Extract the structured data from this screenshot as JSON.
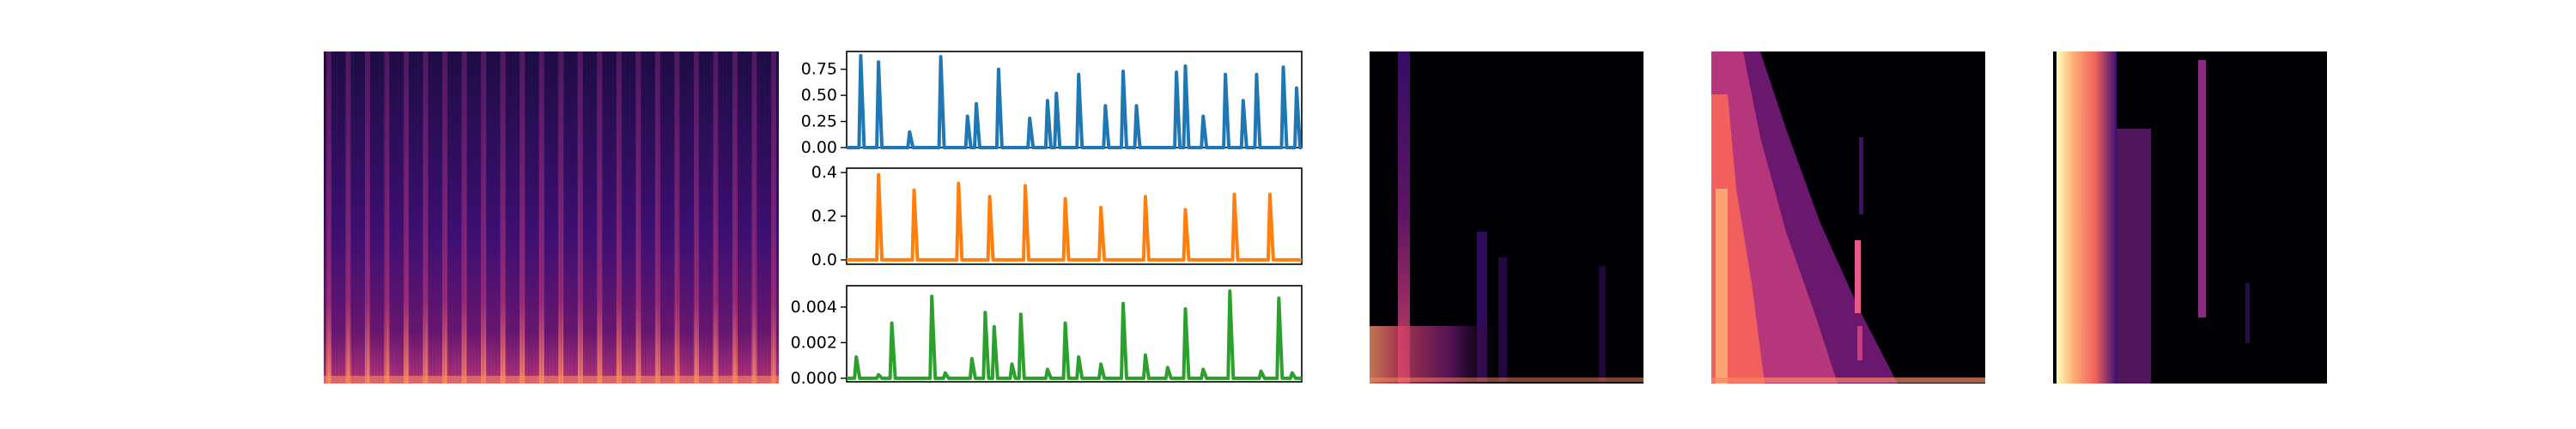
{
  "figure": {
    "background": "#ffffff",
    "colormap": [
      "#000004",
      "#1b0c41",
      "#4a0c6b",
      "#781c6d",
      "#a52c60",
      "#cf4446",
      "#ed6925",
      "#fb9b06",
      "#f7d13d",
      "#fcffa4"
    ]
  },
  "chart_data": [
    {
      "type": "heatmap",
      "colormap": "magma",
      "description_of_content": "spectrogram with many evenly spaced vertical onset stripes",
      "stripe_count": 24
    },
    {
      "type": "line",
      "color": "#1f77b4",
      "ylim": [
        0,
        0.92
      ],
      "yticks": [
        "0.00",
        "0.25",
        "0.50",
        "0.75"
      ],
      "peak_x": [
        0.02,
        0.06,
        0.13,
        0.2,
        0.26,
        0.28,
        0.33,
        0.4,
        0.44,
        0.46,
        0.51,
        0.57,
        0.61,
        0.64,
        0.73,
        0.75,
        0.79,
        0.84,
        0.88,
        0.91,
        0.97,
        1.0
      ],
      "peak_y": [
        0.88,
        0.82,
        0.15,
        0.87,
        0.3,
        0.42,
        0.75,
        0.28,
        0.45,
        0.52,
        0.7,
        0.4,
        0.73,
        0.4,
        0.72,
        0.78,
        0.3,
        0.7,
        0.45,
        0.7,
        0.77,
        0.57
      ]
    },
    {
      "type": "line",
      "color": "#ff7f0e",
      "ylim": [
        -0.02,
        0.42
      ],
      "yticks": [
        "0.0",
        "0.2",
        "0.4"
      ],
      "peak_x": [
        0.06,
        0.14,
        0.24,
        0.31,
        0.39,
        0.48,
        0.56,
        0.66,
        0.75,
        0.86,
        0.94
      ],
      "peak_y": [
        0.39,
        0.32,
        0.35,
        0.29,
        0.34,
        0.28,
        0.24,
        0.29,
        0.23,
        0.3,
        0.3
      ]
    },
    {
      "type": "line",
      "color": "#2ca02c",
      "ylim": [
        -0.0002,
        0.0052
      ],
      "yticks": [
        "0.000",
        "0.002",
        "0.004"
      ],
      "peak_x": [
        0.01,
        0.06,
        0.09,
        0.18,
        0.21,
        0.27,
        0.3,
        0.32,
        0.36,
        0.38,
        0.44,
        0.48,
        0.51,
        0.56,
        0.61,
        0.66,
        0.71,
        0.75,
        0.79,
        0.85,
        0.92,
        0.96,
        0.99
      ],
      "peak_y": [
        0.0012,
        0.0002,
        0.0031,
        0.0046,
        0.0003,
        0.0011,
        0.0037,
        0.0029,
        0.0008,
        0.0036,
        0.0005,
        0.0031,
        0.0012,
        0.0008,
        0.0042,
        0.0013,
        0.0006,
        0.0039,
        0.0005,
        0.0049,
        0.0004,
        0.0045,
        0.0003
      ]
    },
    {
      "type": "heatmap",
      "colormap": "magma",
      "description_of_content": "mostly dark with a narrow bright column near the left and faint lower structures"
    },
    {
      "type": "heatmap",
      "colormap": "magma",
      "description_of_content": "bright orange region concentrated at lower-left decaying to the right, pink speckles near center-right"
    },
    {
      "type": "heatmap",
      "colormap": "magma",
      "description_of_content": "very bright vertical band on far left, purple column near center"
    }
  ]
}
